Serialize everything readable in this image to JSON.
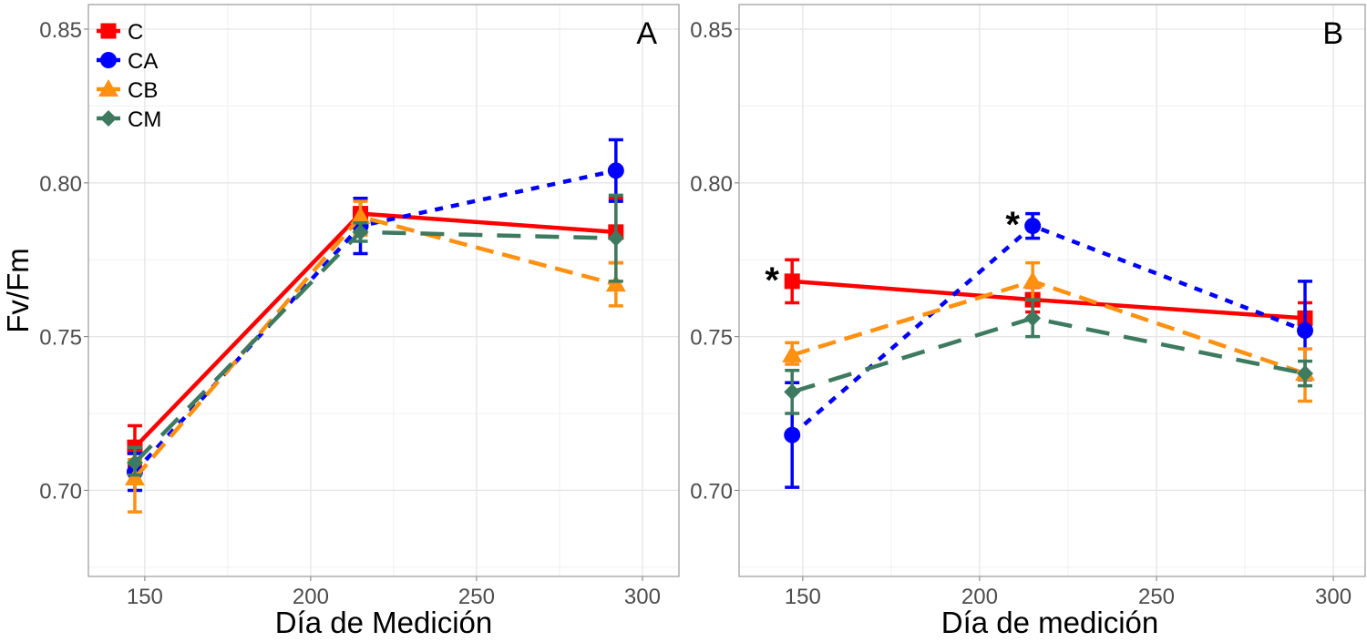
{
  "chart_data": [
    {
      "type": "line",
      "panel_label": "A",
      "xlabel": "Día de Medición",
      "ylabel": "Fv/Fm",
      "xlim": [
        133,
        311
      ],
      "ylim": [
        0.672,
        0.858
      ],
      "x_ticks": [
        150,
        200,
        250,
        300
      ],
      "x_tick_labels": [
        "150",
        "200",
        "250",
        "300"
      ],
      "y_ticks": [
        0.7,
        0.75,
        0.8,
        0.85
      ],
      "y_tick_labels": [
        "0.70",
        "0.75",
        "0.80",
        "0.85"
      ],
      "grid": true,
      "legend_position": "top-left",
      "x": [
        147,
        215,
        292
      ],
      "series": [
        {
          "name": "C",
          "color": "#ff0000",
          "marker": "square",
          "linestyle": "solid",
          "values": [
            0.714,
            0.79,
            0.784
          ],
          "err_low": [
            0.708,
            0.786,
            0.774
          ],
          "err_high": [
            0.721,
            0.795,
            0.795
          ]
        },
        {
          "name": "CA",
          "color": "#0000ff",
          "marker": "circle",
          "linestyle": "dotted",
          "values": [
            0.706,
            0.786,
            0.804
          ],
          "err_low": [
            0.7,
            0.777,
            0.794
          ],
          "err_high": [
            0.712,
            0.795,
            0.814
          ]
        },
        {
          "name": "CB",
          "color": "#ff9010",
          "marker": "triangle",
          "linestyle": "dashed",
          "values": [
            0.704,
            0.789,
            0.767
          ],
          "err_low": [
            0.693,
            0.783,
            0.76
          ],
          "err_high": [
            0.71,
            0.794,
            0.774
          ]
        },
        {
          "name": "CM",
          "color": "#3d7a60",
          "marker": "diamond",
          "linestyle": "longdash",
          "values": [
            0.709,
            0.784,
            0.782
          ],
          "err_low": [
            0.705,
            0.781,
            0.768
          ],
          "err_high": [
            0.714,
            0.787,
            0.796
          ]
        }
      ],
      "annotations": []
    },
    {
      "type": "line",
      "panel_label": "B",
      "xlabel": "Día de medición",
      "ylabel": "",
      "xlim": [
        132,
        309
      ],
      "ylim": [
        0.672,
        0.858
      ],
      "x_ticks": [
        150,
        200,
        250,
        300
      ],
      "x_tick_labels": [
        "150",
        "200",
        "250",
        "300"
      ],
      "y_ticks": [
        0.7,
        0.75,
        0.8,
        0.85
      ],
      "y_tick_labels": [
        "0.70",
        "0.75",
        "0.80",
        "0.85"
      ],
      "grid": true,
      "legend_position": "none",
      "x": [
        147,
        215,
        292
      ],
      "series": [
        {
          "name": "C",
          "color": "#ff0000",
          "marker": "square",
          "linestyle": "solid",
          "values": [
            0.768,
            0.762,
            0.756
          ],
          "err_low": [
            0.761,
            0.758,
            0.751
          ],
          "err_high": [
            0.775,
            0.766,
            0.761
          ]
        },
        {
          "name": "CA",
          "color": "#0000ff",
          "marker": "circle",
          "linestyle": "dotted",
          "values": [
            0.718,
            0.786,
            0.752
          ],
          "err_low": [
            0.701,
            0.782,
            0.736
          ],
          "err_high": [
            0.735,
            0.79,
            0.768
          ]
        },
        {
          "name": "CB",
          "color": "#ff9010",
          "marker": "triangle",
          "linestyle": "dashed",
          "values": [
            0.744,
            0.768,
            0.738
          ],
          "err_low": [
            0.741,
            0.762,
            0.729
          ],
          "err_high": [
            0.748,
            0.774,
            0.746
          ]
        },
        {
          "name": "CM",
          "color": "#3d7a60",
          "marker": "diamond",
          "linestyle": "longdash",
          "values": [
            0.732,
            0.756,
            0.738
          ],
          "err_low": [
            0.725,
            0.75,
            0.734
          ],
          "err_high": [
            0.739,
            0.762,
            0.742
          ]
        }
      ],
      "annotations": [
        {
          "text": "*",
          "near_series": "C",
          "x": 147,
          "y": 0.768
        },
        {
          "text": "*",
          "near_series": "CA",
          "x": 215,
          "y": 0.786
        }
      ]
    }
  ]
}
